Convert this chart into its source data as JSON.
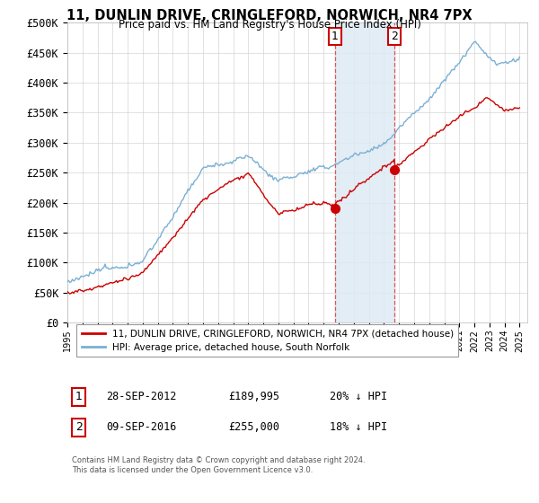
{
  "title": "11, DUNLIN DRIVE, CRINGLEFORD, NORWICH, NR4 7PX",
  "subtitle": "Price paid vs. HM Land Registry's House Price Index (HPI)",
  "legend_label_red": "11, DUNLIN DRIVE, CRINGLEFORD, NORWICH, NR4 7PX (detached house)",
  "legend_label_blue": "HPI: Average price, detached house, South Norfolk",
  "annotation1_date": "28-SEP-2012",
  "annotation1_price": "£189,995",
  "annotation1_hpi": "20% ↓ HPI",
  "annotation1_year": 2012.75,
  "annotation1_value": 189995,
  "annotation2_date": "09-SEP-2016",
  "annotation2_price": "£255,000",
  "annotation2_hpi": "18% ↓ HPI",
  "annotation2_year": 2016.69,
  "annotation2_value": 255000,
  "ylabel_ticks": [
    "£0",
    "£50K",
    "£100K",
    "£150K",
    "£200K",
    "£250K",
    "£300K",
    "£350K",
    "£400K",
    "£450K",
    "£500K"
  ],
  "ytick_values": [
    0,
    50000,
    100000,
    150000,
    200000,
    250000,
    300000,
    350000,
    400000,
    450000,
    500000
  ],
  "xmin": 1995,
  "xmax": 2025.5,
  "ymin": 0,
  "ymax": 500000,
  "background_color": "#ffffff",
  "grid_color": "#cccccc",
  "red_color": "#cc0000",
  "blue_color": "#7ab0d4",
  "annotation_box_color": "#cc0000",
  "vline_color": "#dd4444",
  "vfill_color": "#deeaf4",
  "footnote": "Contains HM Land Registry data © Crown copyright and database right 2024.\nThis data is licensed under the Open Government Licence v3.0."
}
